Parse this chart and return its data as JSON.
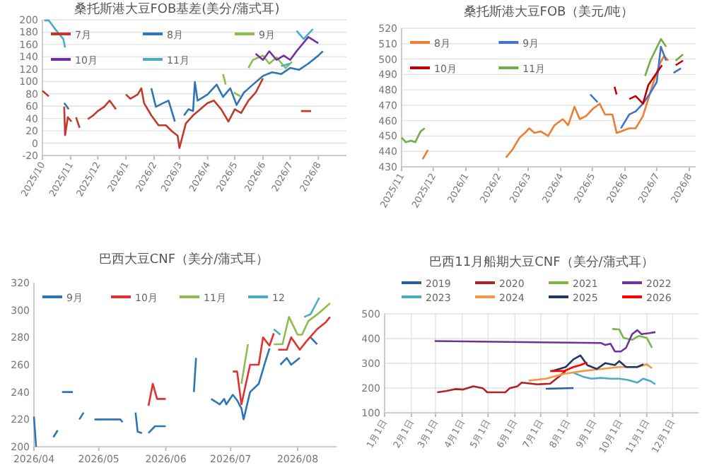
{
  "chart_data": [
    {
      "type": "line",
      "title": "桑托斯港大豆FOB基差(美分/蒲式耳)",
      "legend": "top left",
      "grid": "y",
      "marker": "none",
      "line_style": "solid",
      "xlim": [
        "2025-10-01",
        "2026-09-01"
      ],
      "xticks": [
        {
          "value": "2025-10-01",
          "label": "2025/10"
        },
        {
          "value": "2025-11-01",
          "label": "2025/11"
        },
        {
          "value": "2025-12-01",
          "label": "2025/12"
        },
        {
          "value": "2026-01-01",
          "label": "2026/1"
        },
        {
          "value": "2026-02-01",
          "label": "2026/2"
        },
        {
          "value": "2026-03-01",
          "label": "2026/3"
        },
        {
          "value": "2026-04-01",
          "label": "2026/4"
        },
        {
          "value": "2026-05-01",
          "label": "2026/5"
        },
        {
          "value": "2026-06-01",
          "label": "2026/6"
        },
        {
          "value": "2026-07-01",
          "label": "2026/7"
        },
        {
          "value": "2026-08-01",
          "label": "2026/8"
        }
      ],
      "ylim": [
        -20,
        200
      ],
      "yticks": [
        -20,
        0,
        20,
        40,
        60,
        80,
        100,
        120,
        140,
        160,
        180,
        200
      ],
      "series": [
        {
          "name": "7月",
          "color": "#c0392b",
          "x": [
            "2025-10-01",
            "2025-10-08",
            "2025-10-13",
            "2025-10-25",
            "2025-10-26",
            "2025-10-29",
            "2025-11-02",
            "2025-11-04",
            "2025-11-07",
            "2025-11-11",
            "2025-11-16",
            "2025-11-20",
            "2025-11-26",
            "2025-12-01",
            "2025-12-08",
            "2025-12-14",
            "2025-12-21",
            "2025-12-25",
            "2026-01-01",
            "2026-01-06",
            "2026-01-14",
            "2026-01-18",
            "2026-01-21",
            "2026-01-29",
            "2026-02-06",
            "2026-02-14",
            "2026-02-21",
            "2026-02-27",
            "2026-03-01",
            "2026-03-08",
            "2026-03-16",
            "2026-03-24",
            "2026-04-01",
            "2026-04-08",
            "2026-04-16",
            "2026-04-24",
            "2026-05-01",
            "2026-05-08",
            "2026-05-16",
            "2026-05-24",
            "2026-06-01",
            "2026-07-01",
            "2026-07-13",
            "2026-07-24"
          ],
          "values": [
            85,
            76,
            null,
            59,
            13,
            42,
            35,
            null,
            42,
            25,
            null,
            39,
            45,
            52,
            59,
            69,
            55,
            null,
            79,
            72,
            79,
            89,
            65,
            45,
            29,
            29,
            19,
            12,
            -8,
            32,
            45,
            55,
            65,
            69,
            55,
            35,
            55,
            49,
            69,
            82,
            105,
            null,
            52,
            52
          ]
        },
        {
          "name": "8月",
          "color": "#2e75b6",
          "x": [
            "2025-10-25",
            "2025-10-30",
            "2025-12-01",
            "2026-01-29",
            "2026-02-03",
            "2026-02-11",
            "2026-02-17",
            "2026-02-24",
            "2026-03-01",
            "2026-03-06",
            "2026-03-11",
            "2026-03-16",
            "2026-03-18",
            "2026-03-21",
            "2026-04-01",
            "2026-04-11",
            "2026-04-18",
            "2026-04-26",
            "2026-05-03",
            "2026-05-11",
            "2026-05-21",
            "2026-06-01",
            "2026-06-11",
            "2026-06-21",
            "2026-07-01",
            "2026-07-11",
            "2026-07-21",
            "2026-08-01",
            "2026-08-06"
          ],
          "values": [
            65,
            55,
            null,
            89,
            59,
            65,
            69,
            35,
            null,
            45,
            55,
            52,
            99,
            69,
            79,
            95,
            75,
            89,
            62,
            82,
            95,
            109,
            115,
            112,
            122,
            119,
            129,
            142,
            149
          ]
        },
        {
          "name": "9月",
          "color": "#8fbc4f",
          "x": [
            "2026-04-18",
            "2026-04-21",
            "2026-04-25",
            "2026-04-30",
            "2026-05-07",
            "2026-05-10",
            "2026-05-16",
            "2026-05-21",
            "2026-06-01",
            "2026-06-08",
            "2026-06-16",
            "2026-06-26",
            "2026-07-03"
          ],
          "values": [
            112,
            95,
            null,
            82,
            76,
            null,
            122,
            135,
            142,
            129,
            139,
            122,
            132
          ]
        },
        {
          "name": "10月",
          "color": "#7030a0",
          "x": [
            "2026-05-24",
            "2026-06-01",
            "2026-06-08",
            "2026-06-16",
            "2026-06-24",
            "2026-07-01",
            "2026-07-08",
            "2026-07-21",
            "2026-08-01"
          ],
          "values": [
            145,
            135,
            149,
            135,
            142,
            135,
            149,
            172,
            162
          ]
        },
        {
          "name": "11月",
          "color": "#4bacc6",
          "x": [
            "2025-10-03",
            "2025-10-08",
            "2025-10-15",
            "2025-10-24",
            "2025-10-26",
            "2026-02-01",
            "2026-06-21",
            "2026-07-01",
            "2026-07-04",
            "2026-07-08",
            "2026-07-16",
            "2026-07-26"
          ],
          "values": [
            199,
            199,
            185,
            169,
            155,
            null,
            125,
            129,
            null,
            182,
            169,
            185
          ]
        }
      ]
    },
    {
      "type": "line",
      "title": "桑托斯港大豆FOB（美元/吨）",
      "legend": "top left",
      "grid": "y",
      "marker": "none",
      "line_style": "solid",
      "xlim": [
        "2025-11-01",
        "2026-08-07"
      ],
      "xticks": [
        {
          "value": "2025-11-01",
          "label": "2025/11"
        },
        {
          "value": "2025-12-01",
          "label": "2025/12"
        },
        {
          "value": "2026-01-01",
          "label": "2026/1"
        },
        {
          "value": "2026-02-01",
          "label": "2026/2"
        },
        {
          "value": "2026-03-01",
          "label": "2026/3"
        },
        {
          "value": "2026-04-01",
          "label": "2026/4"
        },
        {
          "value": "2026-05-01",
          "label": "2026/5"
        },
        {
          "value": "2026-06-01",
          "label": "2026/6"
        },
        {
          "value": "2026-07-01",
          "label": "2026/7"
        },
        {
          "value": "2026-08-01",
          "label": "2026/8"
        }
      ],
      "ylim": [
        430,
        520
      ],
      "yticks": [
        430,
        440,
        450,
        460,
        470,
        480,
        490,
        500,
        510,
        520
      ],
      "series": [
        {
          "name": "8月",
          "color": "#ed7d31",
          "x": [
            "2025-11-21",
            "2025-11-26",
            "2026-01-01",
            "2026-02-08",
            "2026-02-14",
            "2026-02-21",
            "2026-02-26",
            "2026-03-02",
            "2026-03-07",
            "2026-03-13",
            "2026-03-20",
            "2026-03-26",
            "2026-04-03",
            "2026-04-08",
            "2026-04-14",
            "2026-04-19",
            "2026-04-25",
            "2026-05-02",
            "2026-05-08",
            "2026-05-13",
            "2026-05-20",
            "2026-05-24",
            "2026-05-28",
            "2026-06-05",
            "2026-06-11",
            "2026-06-18",
            "2026-06-27",
            "2026-07-04",
            "2026-07-08",
            "2026-07-12"
          ],
          "values": [
            435,
            441,
            null,
            436,
            441,
            449,
            452,
            455,
            452,
            453,
            450,
            457,
            461,
            457,
            469,
            461,
            463,
            468,
            471,
            464,
            464,
            452,
            453,
            455,
            455,
            463,
            483,
            497,
            502,
            499
          ]
        },
        {
          "name": "9月",
          "color": "#4472c4",
          "x": [
            "2026-04-29",
            "2026-05-06",
            "2026-05-16",
            "2026-05-28",
            "2026-06-05",
            "2026-06-11",
            "2026-06-18",
            "2026-06-25",
            "2026-07-01",
            "2026-07-05",
            "2026-07-10",
            "2026-07-14",
            "2026-07-17",
            "2026-07-24"
          ],
          "values": [
            477,
            472,
            null,
            455,
            464,
            466,
            471,
            478,
            485,
            508,
            499,
            null,
            491,
            494
          ]
        },
        {
          "name": "10月",
          "color": "#c00000",
          "x": [
            "2026-05-22",
            "2026-05-24",
            "2026-05-28",
            "2026-06-05",
            "2026-06-11",
            "2026-06-18",
            "2026-06-23",
            "2026-06-29",
            "2026-07-06",
            "2026-07-13",
            "2026-07-19",
            "2026-07-26"
          ],
          "values": [
            482,
            477,
            null,
            474,
            476,
            471,
            483,
            489,
            496,
            null,
            496,
            499
          ]
        },
        {
          "name": "11月",
          "color": "#70ad47",
          "x": [
            "2025-11-01",
            "2025-11-05",
            "2025-11-10",
            "2025-11-14",
            "2025-11-19",
            "2025-11-23",
            "2026-03-01",
            "2026-06-20",
            "2026-06-25",
            "2026-07-05",
            "2026-07-10",
            "2026-07-14",
            "2026-07-19",
            "2026-07-26"
          ],
          "values": [
            449,
            446,
            447,
            446,
            453,
            455,
            null,
            489,
            499,
            513,
            508,
            null,
            499,
            503
          ]
        }
      ]
    },
    {
      "type": "line",
      "title": "巴西大豆CNF（美分/蒲式耳）",
      "legend": "top left",
      "grid": false,
      "marker": "none",
      "line_style": "solid",
      "xlim": [
        "2026-04-01",
        "2026-08-19"
      ],
      "xticks": [
        {
          "value": "2026-04-01",
          "label": "2026/04"
        },
        {
          "value": "2026-05-01",
          "label": "2026/05"
        },
        {
          "value": "2026-06-01",
          "label": "2026/06"
        },
        {
          "value": "2026-07-01",
          "label": "2026/07"
        },
        {
          "value": "2026-08-01",
          "label": "2026/08"
        }
      ],
      "ylim": [
        200,
        320
      ],
      "yticks": [
        200,
        220,
        240,
        260,
        280,
        300,
        320
      ],
      "series": [
        {
          "name": "9月",
          "color": "#2e75b6",
          "x": [
            "2026-04-01",
            "2026-04-02",
            "2026-04-05",
            "2026-04-10",
            "2026-04-12",
            "2026-04-13",
            "2026-04-14",
            "2026-04-19",
            "2026-04-20",
            "2026-04-22",
            "2026-04-24",
            "2026-04-28",
            "2026-04-29",
            "2026-05-11",
            "2026-05-12",
            "2026-05-14",
            "2026-05-18",
            "2026-05-19",
            "2026-05-21",
            "2026-05-23",
            "2026-05-24",
            "2026-05-27",
            "2026-06-01",
            "2026-06-07",
            "2026-06-14",
            "2026-06-15",
            "2026-06-19",
            "2026-06-22",
            "2026-06-26",
            "2026-06-28",
            "2026-06-29",
            "2026-07-02",
            "2026-07-04",
            "2026-07-06",
            "2026-07-07",
            "2026-07-10",
            "2026-07-14",
            "2026-07-17",
            "2026-07-19",
            "2026-07-22",
            "2026-07-24",
            "2026-07-27",
            "2026-07-29",
            "2026-08-02",
            "2026-08-04",
            "2026-08-07",
            "2026-08-10"
          ],
          "values": [
            222,
            200,
            null,
            207,
            212,
            null,
            240,
            240,
            null,
            220,
            225,
            null,
            220,
            220,
            218,
            null,
            225,
            211,
            210,
            null,
            210,
            215,
            215,
            null,
            240,
            265,
            null,
            235,
            231,
            235,
            231,
            238,
            234,
            228,
            220,
            240,
            246,
            262,
            272,
            null,
            260,
            265,
            260,
            265,
            null,
            280,
            275
          ]
        },
        {
          "name": "10月",
          "color": "#e03030",
          "x": [
            "2026-05-24",
            "2026-05-26",
            "2026-05-28",
            "2026-06-01",
            "2026-06-16",
            "2026-07-02",
            "2026-07-04",
            "2026-07-06",
            "2026-07-10",
            "2026-07-14",
            "2026-07-16",
            "2026-07-19",
            "2026-07-21",
            "2026-07-22",
            "2026-07-23",
            "2026-07-27",
            "2026-07-29",
            "2026-08-02",
            "2026-08-05",
            "2026-08-10",
            "2026-08-14",
            "2026-08-16"
          ],
          "values": [
            230,
            246,
            235,
            235,
            null,
            255,
            255,
            231,
            260,
            260,
            280,
            274,
            283,
            null,
            271,
            271,
            280,
            271,
            277,
            286,
            291,
            295
          ]
        },
        {
          "name": "11月",
          "color": "#8fbc4f",
          "x": [
            "2026-07-06",
            "2026-07-09",
            "2026-07-16",
            "2026-07-21",
            "2026-07-25",
            "2026-07-28",
            "2026-08-01",
            "2026-08-03",
            "2026-08-06",
            "2026-08-11",
            "2026-08-16"
          ],
          "values": [
            246,
            275,
            null,
            275,
            275,
            295,
            282,
            282,
            292,
            298,
            305
          ]
        },
        {
          "name": "12",
          "color": "#4bacc6",
          "x": [
            "2026-07-21",
            "2026-07-24",
            "2026-07-28",
            "2026-08-04",
            "2026-08-07",
            "2026-08-11"
          ],
          "values": [
            286,
            282,
            null,
            295,
            297,
            309
          ]
        }
      ]
    },
    {
      "type": "line",
      "title": "巴西11月船期大豆CNF（美分/蒲式耳）",
      "legend": "top",
      "grid": true,
      "marker": "none",
      "line_style": "solid",
      "xlim": [
        "--01-01",
        "--12-31"
      ],
      "xticks": [
        {
          "value": "--01-01",
          "label": "1月1日"
        },
        {
          "value": "--02-01",
          "label": "2月1日"
        },
        {
          "value": "--03-01",
          "label": "3月1日"
        },
        {
          "value": "--04-01",
          "label": "4月1日"
        },
        {
          "value": "--05-01",
          "label": "5月1日"
        },
        {
          "value": "--06-01",
          "label": "6月1日"
        },
        {
          "value": "--07-01",
          "label": "7月1日"
        },
        {
          "value": "--08-01",
          "label": "8月1日"
        },
        {
          "value": "--09-01",
          "label": "9月1日"
        },
        {
          "value": "--10-01",
          "label": "10月1日"
        },
        {
          "value": "--11-01",
          "label": "11月1日"
        },
        {
          "value": "--12-01",
          "label": "12月1日"
        }
      ],
      "ylim": [
        100,
        500
      ],
      "yticks": [
        100,
        200,
        300,
        400,
        500
      ],
      "series": [
        {
          "name": "2019",
          "color": "#2e5d9c",
          "x": [
            "--07-07",
            "--08-08"
          ],
          "values": [
            197,
            200
          ]
        },
        {
          "name": "2020",
          "color": "#b22222",
          "x": [
            "--03-03",
            "--03-13",
            "--03-24",
            "--04-02",
            "--04-14",
            "--04-25",
            "--04-30",
            "--05-21",
            "--05-26",
            "--06-04",
            "--06-09",
            "--06-27",
            "--07-12",
            "--07-22",
            "--07-30"
          ],
          "values": [
            183,
            188,
            196,
            194,
            207,
            199,
            183,
            183,
            199,
            207,
            222,
            215,
            218,
            246,
            269
          ]
        },
        {
          "name": "2021",
          "color": "#7ab648",
          "x": [
            "--09-22",
            "--09-30",
            "--10-05",
            "--10-15",
            "--10-23",
            "--11-01",
            "--11-07"
          ],
          "values": [
            439,
            437,
            403,
            395,
            411,
            403,
            363
          ]
        },
        {
          "name": "2022",
          "color": "#7030a0",
          "x": [
            "--02-28",
            "--09-09",
            "--09-14",
            "--09-20",
            "--09-25",
            "--10-02",
            "--10-08",
            "--10-15",
            "--10-21",
            "--10-26",
            "--11-04",
            "--11-11"
          ],
          "values": [
            390,
            382,
            374,
            379,
            348,
            348,
            363,
            418,
            434,
            418,
            422,
            426
          ]
        },
        {
          "name": "2023",
          "color": "#4bacc6",
          "x": [
            "--08-08",
            "--08-19",
            "--08-29",
            "--09-09",
            "--09-20",
            "--09-30",
            "--10-10",
            "--10-21",
            "--10-28",
            "--11-06",
            "--11-11"
          ],
          "values": [
            262,
            246,
            238,
            241,
            238,
            238,
            233,
            222,
            238,
            227,
            215
          ]
        },
        {
          "name": "2024",
          "color": "#f79646",
          "x": [
            "--06-17",
            "--07-07",
            "--07-28",
            "--08-19",
            "--09-09",
            "--09-30",
            "--10-21",
            "--11-01",
            "--11-07"
          ],
          "values": [
            230,
            238,
            257,
            269,
            277,
            285,
            285,
            296,
            280
          ]
        },
        {
          "name": "2025",
          "color": "#1f3864",
          "x": [
            "--07-15",
            "--07-30",
            "--08-08",
            "--08-16",
            "--08-24",
            "--09-04",
            "--09-14",
            "--09-25",
            "--09-30",
            "--10-08",
            "--10-21",
            "--10-28"
          ],
          "values": [
            269,
            285,
            316,
            332,
            293,
            277,
            301,
            293,
            309,
            285,
            285,
            296
          ]
        },
        {
          "name": "2026",
          "color": "#ff0000",
          "x": [
            "--07-12",
            "--07-28",
            "--08-08",
            "--08-16",
            "--08-24"
          ],
          "values": [
            269,
            269,
            285,
            293,
            304
          ]
        }
      ]
    }
  ]
}
